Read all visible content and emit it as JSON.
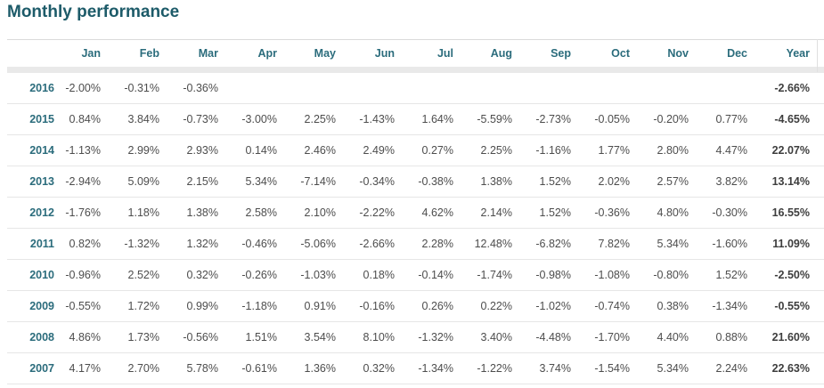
{
  "title": "Monthly performance",
  "colors": {
    "title_teal": "#1d5b69",
    "header_teal": "#2b6c7c",
    "value_gray": "#4d4d4d",
    "total_gray": "#3e3e3e",
    "band_gray": "#e9e9e9",
    "separator_gray": "#e6e6e6"
  },
  "table": {
    "columns": [
      "Jan",
      "Feb",
      "Mar",
      "Apr",
      "May",
      "Jun",
      "Jul",
      "Aug",
      "Sep",
      "Oct",
      "Nov",
      "Dec",
      "Year"
    ],
    "rows": [
      {
        "year": "2016",
        "values": [
          "-2.00%",
          "-0.31%",
          "-0.36%",
          "",
          "",
          "",
          "",
          "",
          "",
          "",
          "",
          ""
        ],
        "total": "-2.66%"
      },
      {
        "year": "2015",
        "values": [
          "0.84%",
          "3.84%",
          "-0.73%",
          "-3.00%",
          "2.25%",
          "-1.43%",
          "1.64%",
          "-5.59%",
          "-2.73%",
          "-0.05%",
          "-0.20%",
          "0.77%"
        ],
        "total": "-4.65%"
      },
      {
        "year": "2014",
        "values": [
          "-1.13%",
          "2.99%",
          "2.93%",
          "0.14%",
          "2.46%",
          "2.49%",
          "0.27%",
          "2.25%",
          "-1.16%",
          "1.77%",
          "2.80%",
          "4.47%"
        ],
        "total": "22.07%"
      },
      {
        "year": "2013",
        "values": [
          "-2.94%",
          "5.09%",
          "2.15%",
          "5.34%",
          "-7.14%",
          "-0.34%",
          "-0.38%",
          "1.38%",
          "1.52%",
          "2.02%",
          "2.57%",
          "3.82%"
        ],
        "total": "13.14%"
      },
      {
        "year": "2012",
        "values": [
          "-1.76%",
          "1.18%",
          "1.38%",
          "2.58%",
          "2.10%",
          "-2.22%",
          "4.62%",
          "2.14%",
          "1.52%",
          "-0.36%",
          "4.80%",
          "-0.30%"
        ],
        "total": "16.55%"
      },
      {
        "year": "2011",
        "values": [
          "0.82%",
          "-1.32%",
          "1.32%",
          "-0.46%",
          "-5.06%",
          "-2.66%",
          "2.28%",
          "12.48%",
          "-6.82%",
          "7.82%",
          "5.34%",
          "-1.60%"
        ],
        "total": "11.09%"
      },
      {
        "year": "2010",
        "values": [
          "-0.96%",
          "2.52%",
          "0.32%",
          "-0.26%",
          "-1.03%",
          "0.18%",
          "-0.14%",
          "-1.74%",
          "-0.98%",
          "-1.08%",
          "-0.80%",
          "1.52%"
        ],
        "total": "-2.50%"
      },
      {
        "year": "2009",
        "values": [
          "-0.55%",
          "1.72%",
          "0.99%",
          "-1.18%",
          "0.91%",
          "-0.16%",
          "0.26%",
          "0.22%",
          "-1.02%",
          "-0.74%",
          "0.38%",
          "-1.34%"
        ],
        "total": "-0.55%"
      },
      {
        "year": "2008",
        "values": [
          "4.86%",
          "1.73%",
          "-0.56%",
          "1.51%",
          "3.54%",
          "8.10%",
          "-1.32%",
          "3.40%",
          "-4.48%",
          "-1.70%",
          "4.40%",
          "0.88%"
        ],
        "total": "21.60%"
      },
      {
        "year": "2007",
        "values": [
          "4.17%",
          "2.70%",
          "5.78%",
          "-0.61%",
          "1.36%",
          "0.32%",
          "-1.34%",
          "-1.22%",
          "3.74%",
          "-1.54%",
          "5.34%",
          "2.24%"
        ],
        "total": "22.63%"
      }
    ]
  }
}
